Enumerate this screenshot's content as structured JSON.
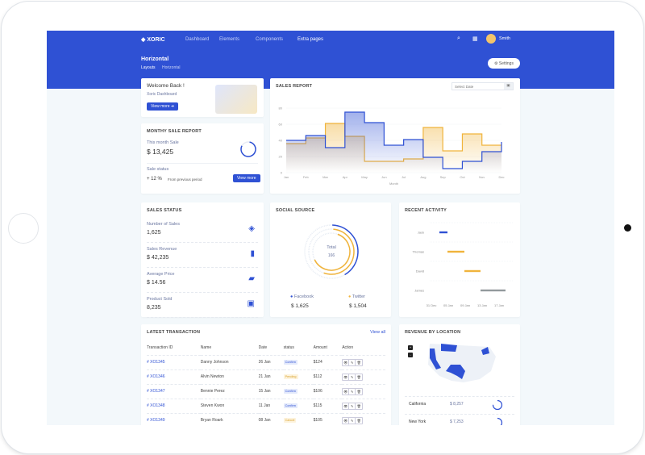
{
  "nav": {
    "brand": "XORIC",
    "items": [
      "Dashboard",
      "Elements",
      "Components",
      "Extra pages"
    ],
    "user": "Smith"
  },
  "page": {
    "title": "Horizontal",
    "breadcrumb": [
      "Layouts",
      "Horizontal"
    ],
    "settings_label": "Settings"
  },
  "welcome": {
    "title": "Welcome Back !",
    "subtitle": "Xoric Dashboard",
    "button": "View more"
  },
  "monthly": {
    "title": "MONTHY SALE REPORT",
    "this_month_label": "This month Sale",
    "this_month_value": "$ 13,425",
    "status_label": "Sale status",
    "change": "+ 12 %",
    "change_note": "From previous period",
    "button": "View more"
  },
  "sales_report": {
    "title": "SALES REPORT",
    "date_placeholder": "Select Date"
  },
  "chart_data": {
    "type": "line",
    "step": true,
    "categories": [
      "Jan",
      "Feb",
      "Mar",
      "Apr",
      "May",
      "Jun",
      "Jul",
      "Aug",
      "Sep",
      "Oct",
      "Nov",
      "Dec"
    ],
    "xlabel": "Month",
    "ylabel": "",
    "yticks": [
      0,
      20,
      40,
      60,
      80
    ],
    "ylim": [
      0,
      80
    ],
    "series": [
      {
        "color": "#2f51d4",
        "values": [
          40,
          46,
          31,
          75,
          62,
          34,
          41,
          19,
          5,
          14,
          26,
          38
        ]
      },
      {
        "color": "#f0b43c",
        "values": [
          36,
          43,
          61,
          45,
          14,
          14,
          17,
          56,
          27,
          48,
          34,
          34
        ]
      }
    ]
  },
  "sales_status": {
    "title": "SALES STATUS",
    "items": [
      {
        "label": "Number of Sales",
        "value": "1,625",
        "icon": "layers-icon"
      },
      {
        "label": "Sales Revenue",
        "value": "$ 42,235",
        "icon": "bar-chart-icon"
      },
      {
        "label": "Average Price",
        "value": "$ 14.56",
        "icon": "ticket-icon"
      },
      {
        "label": "Product Sold",
        "value": "8,235",
        "icon": "box-icon"
      }
    ]
  },
  "social": {
    "title": "SOCIAL SOURCE",
    "total_label": "Total",
    "total_value": "166",
    "items": [
      {
        "name": "Facebook",
        "value": "$ 1,625",
        "color": "#2f51d4"
      },
      {
        "name": "Twitter",
        "value": "$ 1,504",
        "color": "#f0b43c"
      }
    ]
  },
  "activity": {
    "title": "RECENT ACTIVITY",
    "people": [
      "Jack",
      "Thomas",
      "David",
      "James"
    ],
    "ticks": [
      "31 Dec",
      "05 Jan",
      "09 Jan",
      "13 Jan",
      "17 Jan"
    ]
  },
  "transactions": {
    "title": "LATEST TRANSACTION",
    "view_all": "View all",
    "headers": [
      "Transaction ID",
      "Name",
      "Date",
      "status",
      "Amount",
      "Action"
    ],
    "rows": [
      {
        "id": "# XO1345",
        "name": "Danny Johnson",
        "date": "26 Jan",
        "status": "Confirm",
        "amount": "$124"
      },
      {
        "id": "# XO1346",
        "name": "Alvin Newton",
        "date": "21 Jan",
        "status": "Pending",
        "amount": "$112"
      },
      {
        "id": "# XO1347",
        "name": "Bennie Perez",
        "date": "15 Jan",
        "status": "Confirm",
        "amount": "$106"
      },
      {
        "id": "# XO1348",
        "name": "Steven Kwon",
        "date": "11 Jan",
        "status": "Confirm",
        "amount": "$115"
      },
      {
        "id": "# XO1349",
        "name": "Bryan Roark",
        "date": "08 Jan",
        "status": "Cancel",
        "amount": "$105"
      }
    ]
  },
  "location": {
    "title": "REVENUE BY LOCATION",
    "rows": [
      {
        "state": "California",
        "value": "$ 8,257"
      },
      {
        "state": "New York",
        "value": "$ 7,253"
      }
    ]
  }
}
